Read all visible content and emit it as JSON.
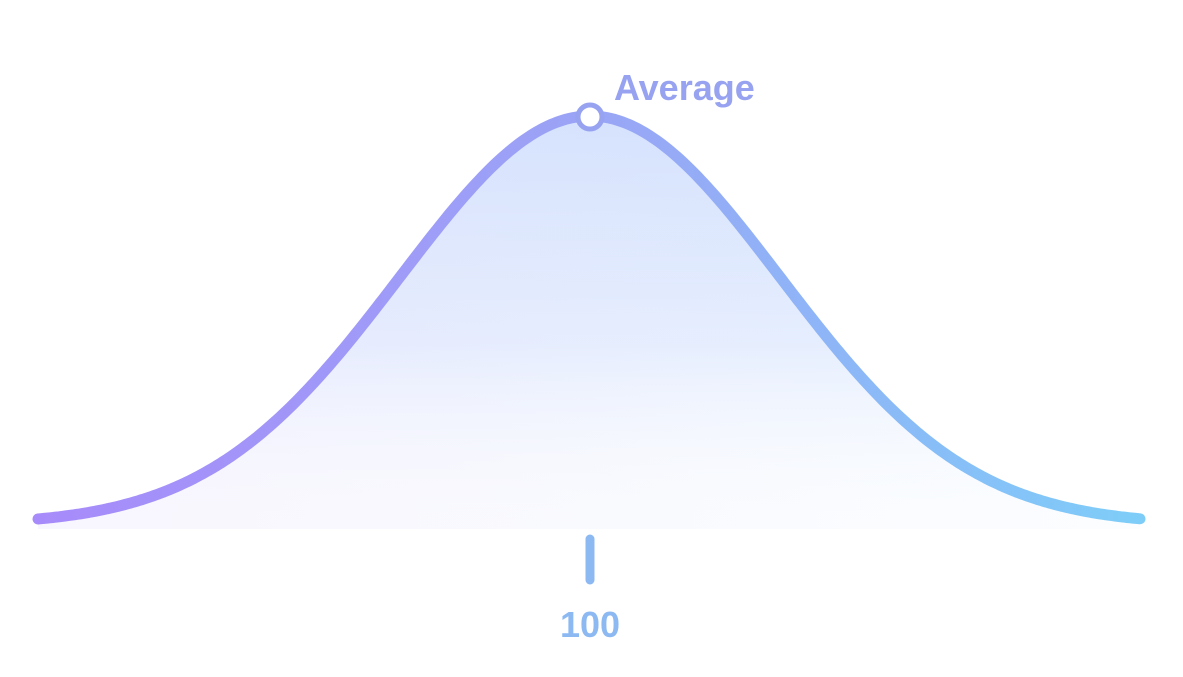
{
  "chart_data": {
    "type": "line",
    "description_kind": "bell-curve",
    "title": "",
    "xlabel": "",
    "ylabel": "",
    "grid": false,
    "legend": "none",
    "x_ticks": [
      100
    ],
    "x_tick_labels": [
      "100"
    ],
    "mean": 100,
    "peak_label": "Average",
    "colors": {
      "gradient_start": "#a78bfa",
      "gradient_mid": "#9aa4f6",
      "gradient_end": "#7ecdf8",
      "fill_top": "#d4e2fd",
      "label_peak": "#97a3f0",
      "label_tick": "#8cb9f2"
    }
  }
}
